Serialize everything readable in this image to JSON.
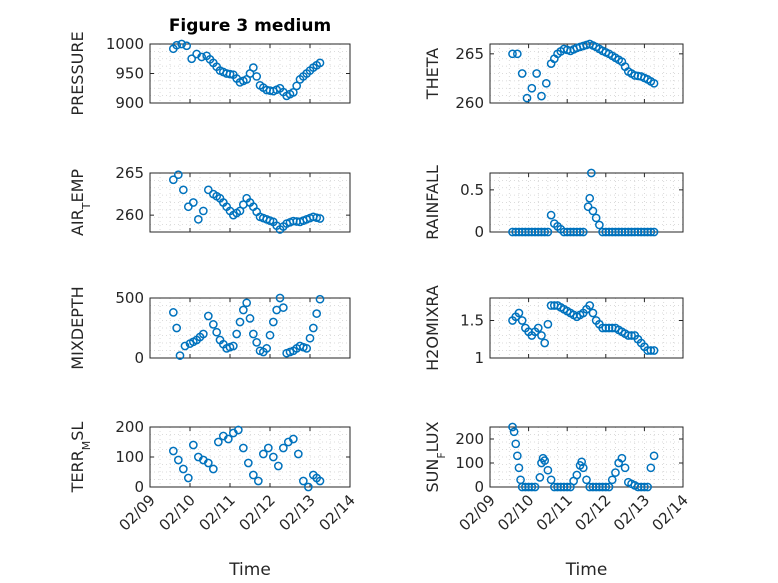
{
  "chart_data": [
    {
      "type": "scatter",
      "title": "Figure 3 medium",
      "ylabel": "PRESSURE",
      "ylim": [
        900,
        1000
      ],
      "yticks": [
        900,
        950,
        1000
      ],
      "x": [
        "02/09 14:00",
        "02/09 16:00",
        "02/09 19:00",
        "02/09 22:00",
        "02/10 01:00",
        "02/10 04:00",
        "02/10 07:00",
        "02/10 10:00",
        "02/10 14:00",
        "02/10 18:00",
        "02/10 22:00",
        "02/11 02:00",
        "02/11 06:00",
        "02/11 10:00",
        "02/11 14:00",
        "02/11 18:00",
        "02/11 22:00",
        "02/12 02:00",
        "02/12 06:00",
        "02/12 10:00",
        "02/12 14:00",
        "02/12 18:00",
        "02/12 22:00",
        "02/13 02:00",
        "02/13 06:00"
      ],
      "y": [
        992,
        998,
        1000,
        997,
        975,
        983,
        978,
        980,
        968,
        955,
        950,
        948,
        935,
        940,
        960,
        930,
        922,
        920,
        925,
        912,
        918,
        940,
        950,
        960,
        968
      ]
    },
    {
      "type": "scatter",
      "ylabel": "THETA",
      "ylim": [
        260,
        266
      ],
      "yticks": [
        260,
        265
      ],
      "x": [
        "02/09 14:00",
        "02/09 17:00",
        "02/09 20:00",
        "02/09 23:00",
        "02/10 02:00",
        "02/10 05:00",
        "02/10 08:00",
        "02/10 11:00",
        "02/10 14:00",
        "02/10 18:00",
        "02/10 22:00",
        "02/11 02:00",
        "02/11 06:00",
        "02/11 10:00",
        "02/11 14:00",
        "02/11 18:00",
        "02/11 22:00",
        "02/12 02:00",
        "02/12 06:00",
        "02/12 10:00",
        "02/12 14:00",
        "02/12 18:00",
        "02/12 22:00",
        "02/13 02:00",
        "02/13 06:00"
      ],
      "y": [
        265,
        265,
        263,
        260.5,
        261.5,
        263,
        260.7,
        262,
        264,
        265,
        265.5,
        265.3,
        265.6,
        265.8,
        266,
        265.7,
        265.3,
        265,
        264.6,
        264.2,
        263.2,
        262.8,
        262.7,
        262.4,
        262.0
      ]
    },
    {
      "type": "scatter",
      "ylabel": "AIR_TEMP",
      "ylim": [
        258,
        265
      ],
      "yticks": [
        260,
        265
      ],
      "x": [
        "02/09 14:00",
        "02/09 17:00",
        "02/09 20:00",
        "02/09 23:00",
        "02/10 02:00",
        "02/10 05:00",
        "02/10 08:00",
        "02/10 11:00",
        "02/10 14:00",
        "02/10 18:00",
        "02/10 22:00",
        "02/11 02:00",
        "02/11 06:00",
        "02/11 10:00",
        "02/11 14:00",
        "02/11 18:00",
        "02/11 22:00",
        "02/12 02:00",
        "02/12 06:00",
        "02/12 10:00",
        "02/12 14:00",
        "02/12 18:00",
        "02/12 22:00",
        "02/13 02:00",
        "02/13 06:00"
      ],
      "y": [
        264.2,
        264.8,
        263,
        261,
        261.5,
        259.5,
        260.5,
        263,
        262.5,
        262,
        261,
        260,
        260.5,
        262,
        261,
        259.8,
        259.5,
        259.2,
        258.3,
        259,
        259.3,
        259.2,
        259.5,
        259.8,
        259.6
      ]
    },
    {
      "type": "scatter",
      "ylabel": "RAINFALL",
      "ylim": [
        0,
        0.7
      ],
      "yticks": [
        0,
        0.5
      ],
      "x": [
        "02/09 14:00",
        "02/09 20:00",
        "02/10 02:00",
        "02/10 08:00",
        "02/10 12:00",
        "02/10 14:00",
        "02/10 16:00",
        "02/10 22:00",
        "02/11 04:00",
        "02/11 10:00",
        "02/11 13:00",
        "02/11 14:00",
        "02/11 15:00",
        "02/11 16:00",
        "02/11 22:00",
        "02/12 04:00",
        "02/12 10:00",
        "02/12 16:00",
        "02/12 22:00",
        "02/13 04:00",
        "02/13 06:00"
      ],
      "y": [
        0,
        0,
        0,
        0,
        0,
        0.2,
        0.1,
        0,
        0,
        0,
        0.3,
        0.4,
        0.7,
        0.25,
        0,
        0,
        0,
        0,
        0,
        0,
        0
      ]
    },
    {
      "type": "scatter",
      "ylabel": "MIXDEPTH",
      "ylim": [
        0,
        500
      ],
      "yticks": [
        0,
        500
      ],
      "x": [
        "02/09 14:00",
        "02/09 16:00",
        "02/09 18:00",
        "02/09 21:00",
        "02/10 00:00",
        "02/10 04:00",
        "02/10 08:00",
        "02/10 11:00",
        "02/10 14:00",
        "02/10 18:00",
        "02/10 22:00",
        "02/11 02:00",
        "02/11 06:00",
        "02/11 08:00",
        "02/11 10:00",
        "02/11 14:00",
        "02/11 18:00",
        "02/11 20:00",
        "02/11 22:00",
        "02/12 02:00",
        "02/12 06:00",
        "02/12 08:00",
        "02/12 10:00",
        "02/12 14:00",
        "02/12 18:00",
        "02/12 22:00",
        "02/13 02:00",
        "02/13 06:00"
      ],
      "y": [
        380,
        250,
        20,
        100,
        120,
        150,
        200,
        350,
        280,
        150,
        80,
        100,
        300,
        400,
        460,
        200,
        60,
        50,
        80,
        300,
        500,
        420,
        40,
        60,
        100,
        80,
        250,
        490
      ]
    },
    {
      "type": "scatter",
      "ylabel": "H2OMIXRA",
      "ylim": [
        1,
        1.8
      ],
      "yticks": [
        1,
        1.5
      ],
      "x": [
        "02/09 14:00",
        "02/09 18:00",
        "02/09 22:00",
        "02/10 02:00",
        "02/10 06:00",
        "02/10 10:00",
        "02/10 14:00",
        "02/10 18:00",
        "02/10 22:00",
        "02/11 02:00",
        "02/11 06:00",
        "02/11 10:00",
        "02/11 14:00",
        "02/11 18:00",
        "02/11 22:00",
        "02/12 02:00",
        "02/12 06:00",
        "02/12 10:00",
        "02/12 14:00",
        "02/12 18:00",
        "02/12 22:00",
        "02/13 02:00",
        "02/13 06:00"
      ],
      "y": [
        1.5,
        1.6,
        1.4,
        1.3,
        1.4,
        1.2,
        1.7,
        1.7,
        1.65,
        1.6,
        1.55,
        1.6,
        1.7,
        1.5,
        1.4,
        1.4,
        1.4,
        1.35,
        1.3,
        1.3,
        1.2,
        1.1,
        1.1
      ]
    },
    {
      "type": "scatter",
      "ylabel": "TERR_MSL",
      "ylim": [
        0,
        200
      ],
      "yticks": [
        0,
        100,
        200
      ],
      "x": [
        "02/09 14:00",
        "02/09 17:00",
        "02/09 20:00",
        "02/09 23:00",
        "02/10 02:00",
        "02/10 05:00",
        "02/10 08:00",
        "02/10 11:00",
        "02/10 14:00",
        "02/10 17:00",
        "02/10 20:00",
        "02/10 23:00",
        "02/11 02:00",
        "02/11 05:00",
        "02/11 08:00",
        "02/11 11:00",
        "02/11 14:00",
        "02/11 17:00",
        "02/11 20:00",
        "02/11 23:00",
        "02/12 02:00",
        "02/12 05:00",
        "02/12 08:00",
        "02/12 11:00",
        "02/12 14:00",
        "02/12 17:00",
        "02/12 20:00",
        "02/12 23:00",
        "02/13 02:00",
        "02/13 06:00"
      ],
      "y": [
        120,
        90,
        60,
        30,
        140,
        100,
        90,
        80,
        60,
        150,
        170,
        160,
        180,
        190,
        130,
        80,
        40,
        20,
        110,
        130,
        100,
        70,
        130,
        150,
        160,
        110,
        20,
        0,
        40,
        20
      ]
    },
    {
      "type": "scatter",
      "ylabel": "SUN_FLUX",
      "ylim": [
        0,
        250
      ],
      "yticks": [
        0,
        100,
        200
      ],
      "x": [
        "02/09 14:00",
        "02/09 15:00",
        "02/09 16:00",
        "02/09 17:00",
        "02/09 18:00",
        "02/09 19:00",
        "02/09 20:00",
        "02/10 00:00",
        "02/10 04:00",
        "02/10 07:00",
        "02/10 08:00",
        "02/10 09:00",
        "02/10 10:00",
        "02/10 12:00",
        "02/10 14:00",
        "02/10 16:00",
        "02/10 20:00",
        "02/11 02:00",
        "02/11 06:00",
        "02/11 08:00",
        "02/11 09:00",
        "02/11 10:00",
        "02/11 12:00",
        "02/11 14:00",
        "02/11 16:00",
        "02/11 20:00",
        "02/12 02:00",
        "02/12 06:00",
        "02/12 08:00",
        "02/12 10:00",
        "02/12 12:00",
        "02/12 14:00",
        "02/12 20:00",
        "02/13 02:00",
        "02/13 04:00",
        "02/13 06:00"
      ],
      "y": [
        250,
        230,
        180,
        130,
        80,
        30,
        0,
        0,
        0,
        40,
        100,
        120,
        110,
        70,
        30,
        0,
        0,
        0,
        50,
        90,
        105,
        80,
        30,
        0,
        0,
        0,
        0,
        60,
        100,
        120,
        80,
        20,
        0,
        0,
        80,
        130
      ]
    }
  ],
  "axes": {
    "xticks": [
      "02/09",
      "02/10",
      "02/11",
      "02/12",
      "02/13",
      "02/14"
    ],
    "xlabel": "Time",
    "xlim": [
      "02/09",
      "02/14"
    ]
  },
  "colors": {
    "marker": "#0072BD",
    "axis": "#262626",
    "grid": "#d0d0d0"
  }
}
